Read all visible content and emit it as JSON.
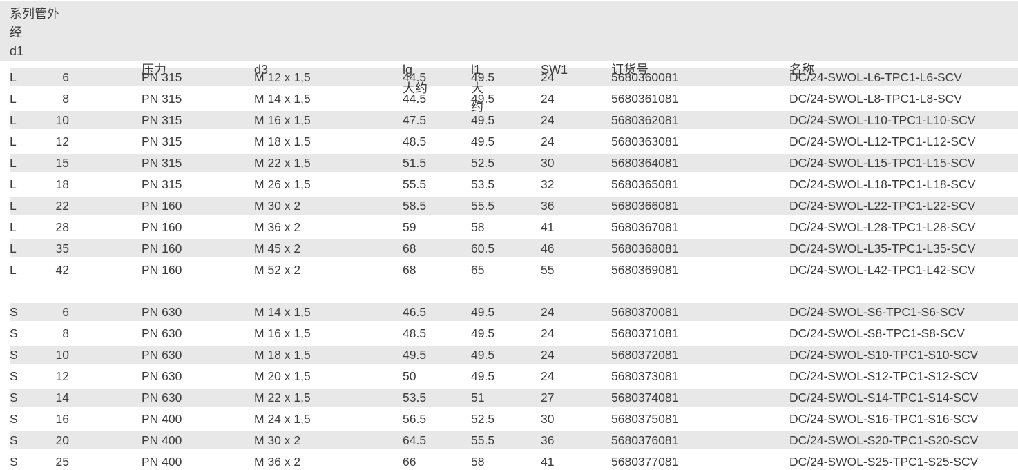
{
  "colors": {
    "stripe": "#e8e8e8",
    "text": "#3c3c3c",
    "background": "#ffffff"
  },
  "table": {
    "header": {
      "series_d1": "系列管外\n经\nd1",
      "pressure": "压力",
      "d3": "d3",
      "lg": "lg\n大约",
      "l1": "l1\n大\n约",
      "sw1": "SW1",
      "order_no": "订货号",
      "name": "名称"
    },
    "groups": [
      {
        "series": "L",
        "rows": [
          {
            "series": "L",
            "d1": "6",
            "pressure": "PN 315",
            "d3": "M 12 x 1,5",
            "lg": "44.5",
            "l1": "49.5",
            "sw1": "24",
            "order_no": "5680360081",
            "name": "DC/24-SWOL-L6-TPC1-L6-SCV"
          },
          {
            "series": "L",
            "d1": "8",
            "pressure": "PN 315",
            "d3": "M 14 x 1,5",
            "lg": "44.5",
            "l1": "49.5",
            "sw1": "24",
            "order_no": "5680361081",
            "name": "DC/24-SWOL-L8-TPC1-L8-SCV"
          },
          {
            "series": "L",
            "d1": "10",
            "pressure": "PN 315",
            "d3": "M 16 x 1,5",
            "lg": "47.5",
            "l1": "49.5",
            "sw1": "24",
            "order_no": "5680362081",
            "name": "DC/24-SWOL-L10-TPC1-L10-SCV"
          },
          {
            "series": "L",
            "d1": "12",
            "pressure": "PN 315",
            "d3": "M 18 x 1,5",
            "lg": "48.5",
            "l1": "49.5",
            "sw1": "24",
            "order_no": "5680363081",
            "name": "DC/24-SWOL-L12-TPC1-L12-SCV"
          },
          {
            "series": "L",
            "d1": "15",
            "pressure": "PN 315",
            "d3": "M 22 x 1,5",
            "lg": "51.5",
            "l1": "52.5",
            "sw1": "30",
            "order_no": "5680364081",
            "name": "DC/24-SWOL-L15-TPC1-L15-SCV"
          },
          {
            "series": "L",
            "d1": "18",
            "pressure": "PN 315",
            "d3": "M 26 x 1,5",
            "lg": "55.5",
            "l1": "53.5",
            "sw1": "32",
            "order_no": "5680365081",
            "name": "DC/24-SWOL-L18-TPC1-L18-SCV"
          },
          {
            "series": "L",
            "d1": "22",
            "pressure": "PN 160",
            "d3": "M 30 x 2",
            "lg": "58.5",
            "l1": "55.5",
            "sw1": "36",
            "order_no": "5680366081",
            "name": "DC/24-SWOL-L22-TPC1-L22-SCV"
          },
          {
            "series": "L",
            "d1": "28",
            "pressure": "PN 160",
            "d3": "M 36 x 2",
            "lg": "59",
            "l1": "58",
            "sw1": "41",
            "order_no": "5680367081",
            "name": "DC/24-SWOL-L28-TPC1-L28-SCV"
          },
          {
            "series": "L",
            "d1": "35",
            "pressure": "PN 160",
            "d3": "M 45 x 2",
            "lg": "68",
            "l1": "60.5",
            "sw1": "46",
            "order_no": "5680368081",
            "name": "DC/24-SWOL-L35-TPC1-L35-SCV"
          },
          {
            "series": "L",
            "d1": "42",
            "pressure": "PN 160",
            "d3": "M 52 x 2",
            "lg": "68",
            "l1": "65",
            "sw1": "55",
            "order_no": "5680369081",
            "name": "DC/24-SWOL-L42-TPC1-L42-SCV"
          }
        ]
      },
      {
        "series": "S",
        "rows": [
          {
            "series": "S",
            "d1": "6",
            "pressure": "PN 630",
            "d3": "M 14 x 1,5",
            "lg": "46.5",
            "l1": "49.5",
            "sw1": "24",
            "order_no": "5680370081",
            "name": "DC/24-SWOL-S6-TPC1-S6-SCV"
          },
          {
            "series": "S",
            "d1": "8",
            "pressure": "PN 630",
            "d3": "M 16 x 1,5",
            "lg": "48.5",
            "l1": "49.5",
            "sw1": "24",
            "order_no": "5680371081",
            "name": "DC/24-SWOL-S8-TPC1-S8-SCV"
          },
          {
            "series": "S",
            "d1": "10",
            "pressure": "PN 630",
            "d3": "M 18 x 1,5",
            "lg": "49.5",
            "l1": "49.5",
            "sw1": "24",
            "order_no": "5680372081",
            "name": "DC/24-SWOL-S10-TPC1-S10-SCV"
          },
          {
            "series": "S",
            "d1": "12",
            "pressure": "PN 630",
            "d3": "M 20 x 1,5",
            "lg": "50",
            "l1": "49.5",
            "sw1": "24",
            "order_no": "5680373081",
            "name": "DC/24-SWOL-S12-TPC1-S12-SCV"
          },
          {
            "series": "S",
            "d1": "14",
            "pressure": "PN 630",
            "d3": "M 22 x 1,5",
            "lg": "53.5",
            "l1": "51",
            "sw1": "27",
            "order_no": "5680374081",
            "name": "DC/24-SWOL-S14-TPC1-S14-SCV"
          },
          {
            "series": "S",
            "d1": "16",
            "pressure": "PN 400",
            "d3": "M 24 x 1,5",
            "lg": "56.5",
            "l1": "52.5",
            "sw1": "30",
            "order_no": "5680375081",
            "name": "DC/24-SWOL-S16-TPC1-S16-SCV"
          },
          {
            "series": "S",
            "d1": "20",
            "pressure": "PN 400",
            "d3": "M 30 x 2",
            "lg": "64.5",
            "l1": "55.5",
            "sw1": "36",
            "order_no": "5680376081",
            "name": "DC/24-SWOL-S20-TPC1-S20-SCV"
          },
          {
            "series": "S",
            "d1": "25",
            "pressure": "PN 400",
            "d3": "M 36 x 2",
            "lg": "66",
            "l1": "58",
            "sw1": "41",
            "order_no": "5680377081",
            "name": "DC/24-SWOL-S25-TPC1-S25-SCV"
          }
        ]
      }
    ]
  }
}
